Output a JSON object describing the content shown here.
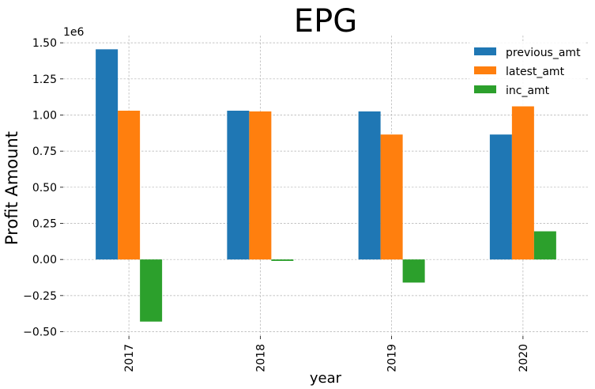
{
  "chart_data": {
    "type": "bar",
    "title": "EPG",
    "xlabel": "year",
    "ylabel": "Profit Amount",
    "y_offset_label": "1e6",
    "categories": [
      "2017",
      "2018",
      "2019",
      "2020"
    ],
    "series": [
      {
        "name": "previous_amt",
        "color": "#1f77b4",
        "values": [
          1.455,
          1.03,
          1.025,
          0.865
        ]
      },
      {
        "name": "latest_amt",
        "color": "#ff7f0e",
        "values": [
          1.03,
          1.025,
          0.865,
          1.06
        ]
      },
      {
        "name": "inc_amt",
        "color": "#2ca02c",
        "values": [
          -0.43,
          -0.01,
          -0.16,
          0.195
        ]
      }
    ],
    "ylim": [
      -0.53,
      1.55
    ],
    "yticks": [
      -0.5,
      -0.25,
      0.0,
      0.25,
      0.5,
      0.75,
      1.0,
      1.25,
      1.5
    ],
    "ytick_labels": [
      "−0.50",
      "−0.25",
      "0.00",
      "0.25",
      "0.50",
      "0.75",
      "1.00",
      "1.25",
      "1.50"
    ],
    "grid": true,
    "legend_position": "top-right"
  }
}
